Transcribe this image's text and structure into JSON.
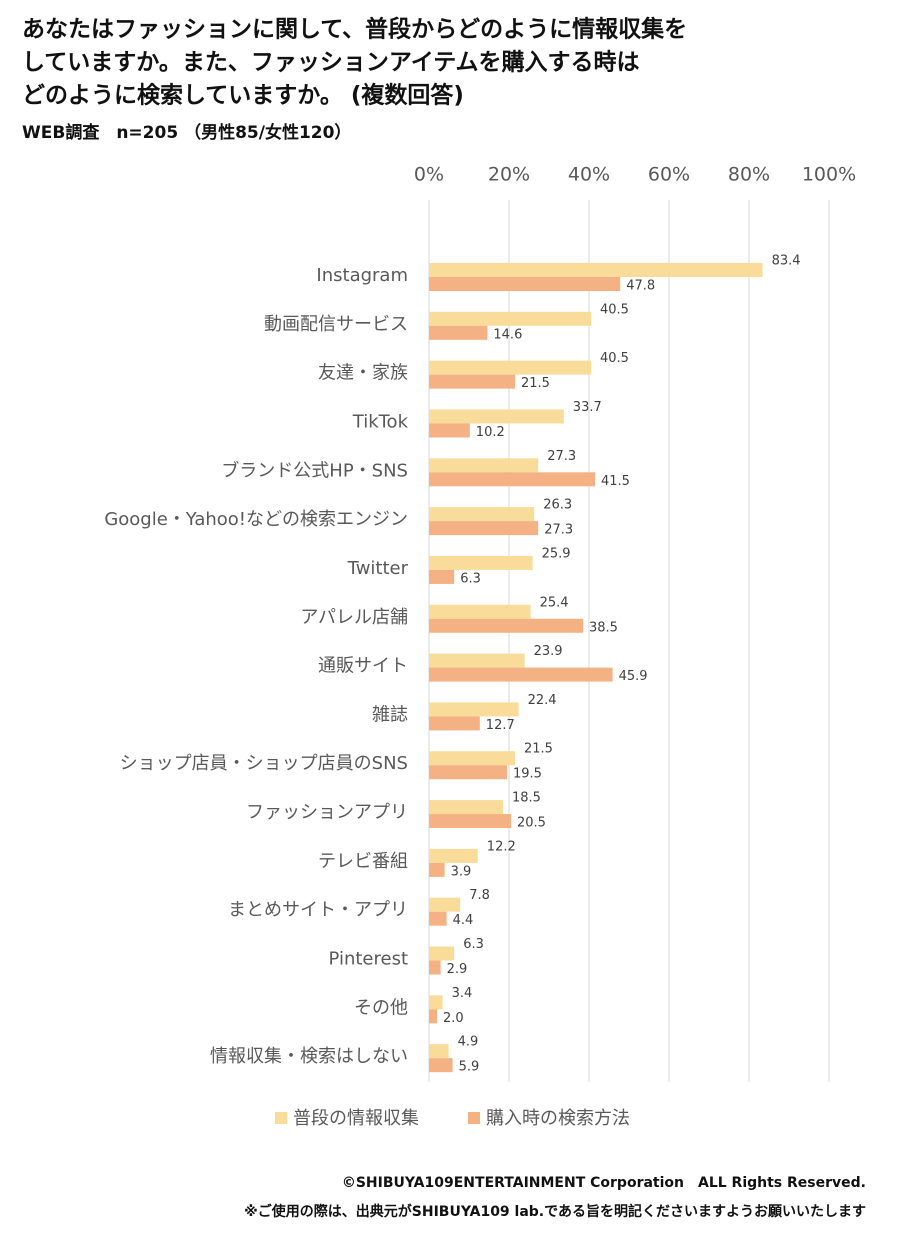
{
  "chart_data": {
    "type": "hbar",
    "title": [
      "あなたはファッションに関して、普段からどのように情報収集を",
      "していますか。また、ファッションアイテムを購入する時は",
      "どのように検索していますか。 (複数回答)"
    ],
    "subtitle": "WEB調査　n=205 （男性85/女性120）",
    "categories": [
      "Instagram",
      "動画配信サービス",
      "友達・家族",
      "TikTok",
      "ブランド公式HP・SNS",
      "Google・Yahoo!などの検索エンジン",
      "Twitter",
      "アパレル店舗",
      "通販サイト",
      "雑誌",
      "ショップ店員・ショップ店員のSNS",
      "ファッションアプリ",
      "テレビ番組",
      "まとめサイト・アプリ",
      "Pinterest",
      "その他",
      "情報収集・検索はしない"
    ],
    "series": [
      {
        "name": "普段の情報収集",
        "color": "#f9dc9a",
        "values": [
          83.4,
          40.5,
          40.5,
          33.7,
          27.3,
          26.3,
          25.9,
          25.4,
          23.9,
          22.4,
          21.5,
          18.5,
          12.2,
          7.8,
          6.3,
          3.4,
          4.9
        ],
        "value_labels": [
          "83.4",
          "40.5",
          "40.5",
          "33.7",
          "27.3",
          "26.3",
          "25.9",
          "25.4",
          "23.9",
          "22.4",
          "21.5",
          "18.5",
          "12.2",
          "7.8",
          "6.3",
          "3.4",
          "4.9"
        ]
      },
      {
        "name": "購入時の検索方法",
        "color": "#f4b183",
        "values": [
          47.8,
          14.6,
          21.5,
          10.2,
          41.5,
          27.3,
          6.3,
          38.5,
          45.9,
          12.7,
          19.5,
          20.5,
          3.9,
          4.4,
          2.9,
          2.0,
          5.9
        ],
        "value_labels": [
          "47.8",
          "14.6",
          "21.5",
          "10.2",
          "41.5",
          "27.3",
          "6.3",
          "38.5",
          "45.9",
          "12.7",
          "19.5",
          "20.5",
          "3.9",
          "4.4",
          "2.9",
          "2.0",
          "5.9"
        ]
      }
    ],
    "xlim": [
      0,
      100
    ],
    "xticks": [
      {
        "value": 0,
        "label": "0%"
      },
      {
        "value": 20,
        "label": "20%"
      },
      {
        "value": 40,
        "label": "40%"
      },
      {
        "value": 60,
        "label": "60%"
      },
      {
        "value": 80,
        "label": "80%"
      },
      {
        "value": 100,
        "label": "100%"
      }
    ],
    "grid": true,
    "footer": [
      "©SHIBUYA109ENTERTAINMENT Corporation　ALL Rights Reserved.",
      "※ご使用の際は、出典元がSHIBUYA109 lab.である旨を明記くださいますようお願いいたします"
    ]
  }
}
